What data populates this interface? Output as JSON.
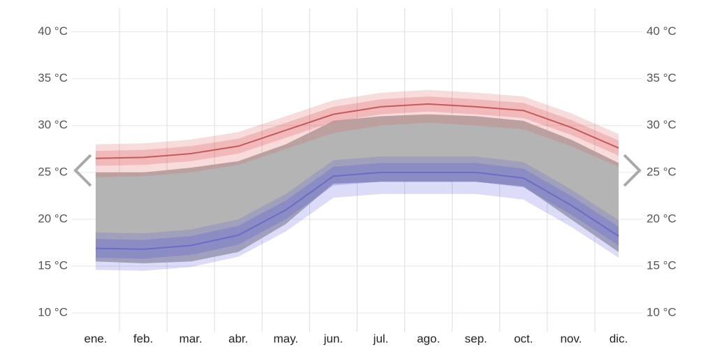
{
  "chart_data": {
    "type": "band-line",
    "categories": [
      "ene.",
      "feb.",
      "mar.",
      "abr.",
      "may.",
      "jun.",
      "jul.",
      "ago.",
      "sep.",
      "oct.",
      "nov.",
      "dic."
    ],
    "ylim": [
      8,
      42.5
    ],
    "yticks": [
      {
        "value": 10,
        "label": "10 °C"
      },
      {
        "value": 15,
        "label": "15 °C"
      },
      {
        "value": 20,
        "label": "20 °C"
      },
      {
        "value": 25,
        "label": "25 °C"
      },
      {
        "value": 30,
        "label": "30 °C"
      },
      {
        "value": 35,
        "label": "35 °C"
      },
      {
        "value": 40,
        "label": "40 °C"
      }
    ],
    "grid": true,
    "bands": [
      {
        "color": "#b4b4b4",
        "opacity": 1,
        "low": [
          15.5,
          15.3,
          15.5,
          16.5,
          19.5,
          23.8,
          24,
          24,
          24,
          23.5,
          20,
          16.5
        ],
        "high": [
          25,
          25,
          25.5,
          26.2,
          28,
          30.5,
          31,
          31.2,
          31,
          30.5,
          28.5,
          26
        ]
      },
      {
        "color": "#dc5050",
        "opacity": 0.2,
        "low": [
          24.5,
          24.6,
          25,
          25.8,
          27.5,
          29.2,
          30,
          30.3,
          30,
          29.6,
          27.8,
          25.6
        ],
        "high": [
          28,
          28.1,
          28.5,
          29.3,
          31,
          32.7,
          33.5,
          33.8,
          33.5,
          33.1,
          31.3,
          29.1
        ]
      },
      {
        "color": "#dc5050",
        "opacity": 0.25,
        "low": [
          25.7,
          25.8,
          26.2,
          27,
          28.7,
          30.4,
          31.2,
          31.5,
          31.2,
          30.8,
          29,
          26.8
        ],
        "high": [
          27.3,
          27.4,
          27.8,
          28.6,
          30.3,
          32,
          32.8,
          33.1,
          32.8,
          32.4,
          30.6,
          28.4
        ]
      },
      {
        "color": "#5050dc",
        "opacity": 0.2,
        "low": [
          14.6,
          14.5,
          14.9,
          16,
          18.7,
          22.3,
          22.7,
          22.7,
          22.7,
          22.1,
          19.2,
          15.9
        ],
        "high": [
          18.6,
          18.5,
          18.9,
          20,
          22.7,
          26.3,
          26.7,
          26.7,
          26.7,
          26.1,
          23.2,
          19.9
        ]
      },
      {
        "color": "#5050dc",
        "opacity": 0.25,
        "low": [
          15.9,
          15.8,
          16.2,
          17.3,
          20,
          23.6,
          24,
          24,
          24,
          23.4,
          20.5,
          17.2
        ],
        "high": [
          17.9,
          17.8,
          18.2,
          19.3,
          22,
          25.6,
          26,
          26,
          26,
          25.4,
          22.5,
          19.2
        ]
      }
    ],
    "series": [
      {
        "color": "#c55a5a",
        "values": [
          26.5,
          26.6,
          27,
          27.8,
          29.5,
          31.2,
          32,
          32.3,
          32,
          31.6,
          29.8,
          27.6
        ]
      },
      {
        "color": "#6b6bc8",
        "values": [
          16.9,
          16.8,
          17.2,
          18.3,
          21,
          24.6,
          25,
          25,
          25,
          24.4,
          21.5,
          18.2
        ]
      }
    ]
  }
}
